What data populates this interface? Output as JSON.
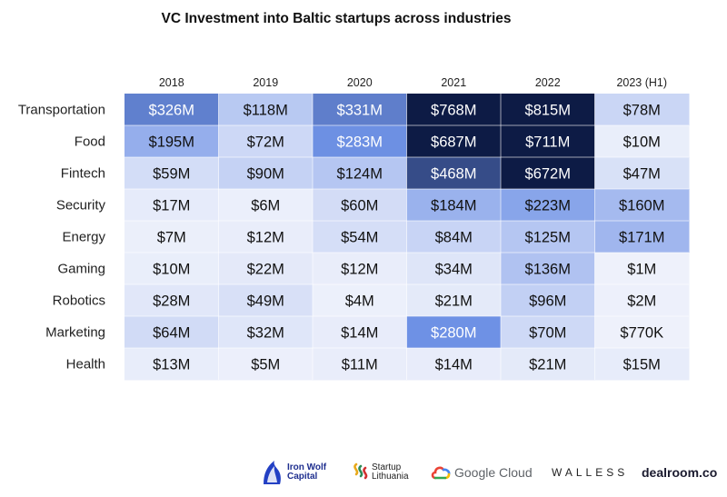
{
  "chart_data": {
    "type": "heatmap",
    "title": "VC Investment into Baltic startups across industries",
    "columns": [
      "2018",
      "2019",
      "2020",
      "2021",
      "2022",
      "2023 (H1)"
    ],
    "rows": [
      "Transportation",
      "Food",
      "Fintech",
      "Security",
      "Energy",
      "Gaming",
      "Robotics",
      "Marketing",
      "Health"
    ],
    "labels": [
      [
        "$326M",
        "$118M",
        "$331M",
        "$768M",
        "$815M",
        "$78M"
      ],
      [
        "$195M",
        "$72M",
        "$283M",
        "$687M",
        "$711M",
        "$10M"
      ],
      [
        "$59M",
        "$90M",
        "$124M",
        "$468M",
        "$672M",
        "$47M"
      ],
      [
        "$17M",
        "$6M",
        "$60M",
        "$184M",
        "$223M",
        "$160M"
      ],
      [
        "$7M",
        "$12M",
        "$54M",
        "$84M",
        "$125M",
        "$171M"
      ],
      [
        "$10M",
        "$22M",
        "$12M",
        "$34M",
        "$136M",
        "$1M"
      ],
      [
        "$28M",
        "$49M",
        "$4M",
        "$21M",
        "$96M",
        "$2M"
      ],
      [
        "$64M",
        "$32M",
        "$14M",
        "$280M",
        "$70M",
        "$770K"
      ],
      [
        "$13M",
        "$5M",
        "$11M",
        "$14M",
        "$21M",
        "$15M"
      ]
    ],
    "values_musd": [
      [
        326,
        118,
        331,
        768,
        815,
        78
      ],
      [
        195,
        72,
        283,
        687,
        711,
        10
      ],
      [
        59,
        90,
        124,
        468,
        672,
        47
      ],
      [
        17,
        6,
        60,
        184,
        223,
        160
      ],
      [
        7,
        12,
        54,
        84,
        125,
        171
      ],
      [
        10,
        22,
        12,
        34,
        136,
        1
      ],
      [
        28,
        49,
        4,
        21,
        96,
        2
      ],
      [
        64,
        32,
        14,
        280,
        70,
        0.77
      ],
      [
        13,
        5,
        11,
        14,
        21,
        15
      ]
    ],
    "color_scale": {
      "low": "#eef1fb",
      "mid": "#6f92e6",
      "high": "#0d1b45",
      "text_dark": "#111111",
      "text_light": "#ffffff"
    }
  },
  "logos": {
    "iron_wolf": "Iron Wolf Capital",
    "startup_lithuania": "Startup Lithuania",
    "google_cloud": "Google Cloud",
    "walless": "WALLESS",
    "dealroom": "dealroom.co",
    "icons": [
      "wolf-icon",
      "startup-lithuania-icon",
      "google-cloud-icon"
    ]
  }
}
